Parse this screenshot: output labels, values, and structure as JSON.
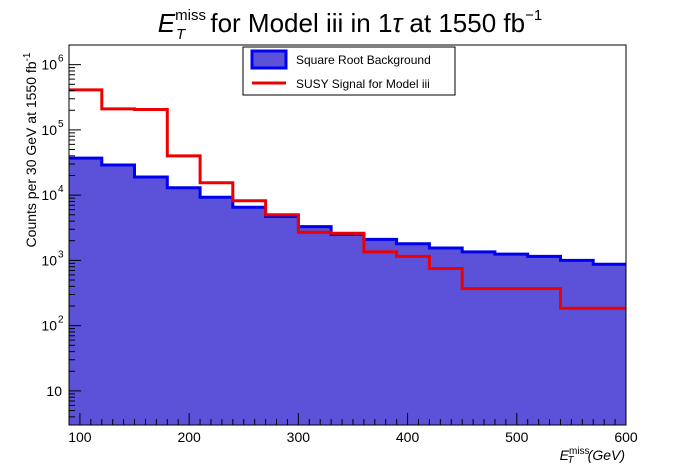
{
  "chart_data": {
    "type": "area",
    "title": {
      "base": "E",
      "sub": "T",
      "sup": "miss",
      "middle": " for Model iii in 1",
      "tau": "τ",
      "end": " at 1550 fb",
      "end_sup": "−1"
    },
    "xlabel": {
      "base": "E",
      "sub": "T",
      "sup": "miss",
      "rest": "(GeV)"
    },
    "ylabel": "Counts per 30 GeV at 1550 fb",
    "ylabel_sup": "-1",
    "xlim": [
      90,
      600
    ],
    "ylim": [
      3,
      2000000
    ],
    "yscale": "log",
    "x_ticks": [
      100,
      200,
      300,
      400,
      500,
      600
    ],
    "y_ticks": [
      {
        "value": 10,
        "label": "10",
        "exp": ""
      },
      {
        "value": 100,
        "label": "10",
        "exp": "2"
      },
      {
        "value": 1000,
        "label": "10",
        "exp": "3"
      },
      {
        "value": 10000,
        "label": "10",
        "exp": "4"
      },
      {
        "value": 100000,
        "label": "10",
        "exp": "5"
      },
      {
        "value": 1000000,
        "label": "10",
        "exp": "6"
      }
    ],
    "bin_edges": [
      90,
      120,
      150,
      180,
      210,
      240,
      270,
      300,
      330,
      360,
      390,
      420,
      450,
      480,
      510,
      540,
      570,
      600
    ],
    "series": [
      {
        "name": "Square Root Background",
        "style": "filled",
        "fill": "#5b52d9",
        "color": "#0000ee",
        "values": [
          37000,
          29000,
          19000,
          13000,
          9300,
          6500,
          4700,
          3300,
          2500,
          2100,
          1800,
          1550,
          1350,
          1250,
          1150,
          1000,
          870
        ]
      },
      {
        "name": "SUSY Signal for Model iii",
        "style": "line",
        "color": "#ee0000",
        "values": [
          410000,
          210000,
          205000,
          40000,
          15500,
          8200,
          5000,
          2700,
          2600,
          1350,
          1150,
          750,
          370,
          370,
          370,
          185,
          185
        ]
      }
    ],
    "legend_placement": "top-center",
    "grid": false
  }
}
